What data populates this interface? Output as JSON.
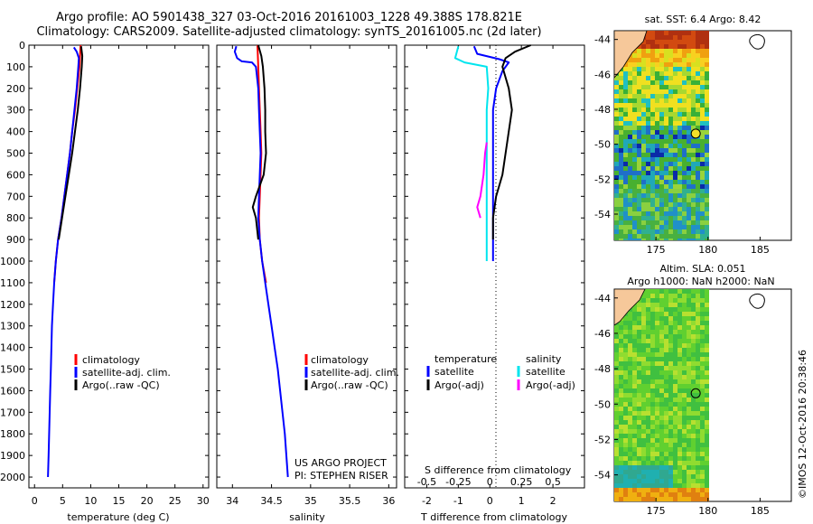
{
  "title": {
    "line1": "Argo profile: AO 5901438_327 03-Oct-2016 20161003_1228 49.388S 178.821E",
    "line2": "Climatology: CARS2009. Satellite-adjusted climatology: synTS_20161005.nc (2d later)"
  },
  "colors": {
    "climatology": "#ff0000",
    "satellite": "#0000ff",
    "argo": "#000000",
    "s_satellite": "#00e5ee",
    "s_argo": "#ff00ff"
  },
  "credit": {
    "project": "US ARGO PROJECT",
    "pi": "PI: STEPHEN RISER",
    "stamp": "©IMOS 12-Oct-2016 20:38:46"
  },
  "legend": {
    "climatology": "climatology",
    "satellite": "satellite-adj. clim.",
    "argo": "Argo(..raw -QC)"
  },
  "diff_legend": {
    "temperature": "temperature",
    "salinity": "salinity",
    "t_satellite": "satellite",
    "t_argo": "Argo(-adj)",
    "s_satellite": "satellite",
    "s_argo": "Argo(-adj)"
  },
  "map_labels": {
    "sst": "sat. SST: 6.4 Argo: 8.42",
    "sla": "Altim. SLA: 0.051",
    "depth": "Argo h1000: NaN h2000: NaN"
  },
  "chart_data": [
    {
      "type": "line",
      "panel": "temperature",
      "xlabel": "temperature (deg C)",
      "ylim": [
        2050,
        0
      ],
      "xlim": [
        -1,
        31
      ],
      "xticks": [
        0,
        5,
        10,
        15,
        20,
        25,
        30
      ],
      "yticks": [
        0,
        100,
        200,
        300,
        400,
        500,
        600,
        700,
        800,
        900,
        1000,
        1100,
        1200,
        1300,
        1400,
        1500,
        1600,
        1700,
        1800,
        1900,
        2000
      ],
      "series": [
        {
          "name": "climatology",
          "color": "#ff0000",
          "points": [
            [
              8.2,
              0
            ],
            [
              8.0,
              100
            ],
            [
              7.6,
              200
            ],
            [
              7.2,
              300
            ],
            [
              6.7,
              400
            ],
            [
              6.3,
              500
            ],
            [
              5.8,
              600
            ],
            [
              5.3,
              700
            ],
            [
              4.8,
              800
            ],
            [
              4.2,
              900
            ],
            [
              3.8,
              1000
            ],
            [
              3.5,
              1100
            ]
          ]
        },
        {
          "name": "satellite-adj. clim.",
          "color": "#0000ff",
          "points": [
            [
              7.0,
              10
            ],
            [
              7.5,
              30
            ],
            [
              7.9,
              60
            ],
            [
              7.8,
              100
            ],
            [
              7.5,
              200
            ],
            [
              7.1,
              300
            ],
            [
              6.7,
              400
            ],
            [
              6.3,
              500
            ],
            [
              5.8,
              600
            ],
            [
              5.3,
              700
            ],
            [
              4.8,
              800
            ],
            [
              4.2,
              900
            ],
            [
              3.8,
              1000
            ],
            [
              3.5,
              1100
            ],
            [
              3.3,
              1200
            ],
            [
              3.1,
              1300
            ],
            [
              3.0,
              1400
            ],
            [
              2.9,
              1500
            ],
            [
              2.8,
              1600
            ],
            [
              2.7,
              1700
            ],
            [
              2.6,
              1800
            ],
            [
              2.5,
              1900
            ],
            [
              2.4,
              2000
            ]
          ]
        },
        {
          "name": "Argo(..raw -QC)",
          "color": "#000000",
          "points": [
            [
              8.3,
              5
            ],
            [
              8.5,
              50
            ],
            [
              8.4,
              100
            ],
            [
              8.1,
              200
            ],
            [
              7.7,
              300
            ],
            [
              7.2,
              400
            ],
            [
              6.7,
              500
            ],
            [
              6.1,
              600
            ],
            [
              5.5,
              700
            ],
            [
              4.9,
              800
            ],
            [
              4.3,
              900
            ]
          ]
        }
      ]
    },
    {
      "type": "line",
      "panel": "salinity",
      "xlabel": "salinity",
      "ylim": [
        2050,
        0
      ],
      "xlim": [
        33.8,
        36.1
      ],
      "xticks": [
        34,
        34.5,
        35,
        35.5,
        36
      ],
      "xticklabels": [
        "34",
        "34.5",
        "35",
        "35.5",
        "36"
      ],
      "series": [
        {
          "name": "climatology",
          "color": "#ff0000",
          "points": [
            [
              34.32,
              0
            ],
            [
              34.33,
              100
            ],
            [
              34.34,
              200
            ],
            [
              34.35,
              300
            ],
            [
              34.36,
              400
            ],
            [
              34.37,
              500
            ],
            [
              34.36,
              600
            ],
            [
              34.35,
              700
            ],
            [
              34.34,
              800
            ],
            [
              34.35,
              900
            ],
            [
              34.38,
              1000
            ],
            [
              34.43,
              1100
            ]
          ]
        },
        {
          "name": "satellite-adj. clim.",
          "color": "#0000ff",
          "points": [
            [
              34.05,
              5
            ],
            [
              34.03,
              30
            ],
            [
              34.06,
              60
            ],
            [
              34.12,
              75
            ],
            [
              34.25,
              80
            ],
            [
              34.3,
              100
            ],
            [
              34.33,
              200
            ],
            [
              34.34,
              300
            ],
            [
              34.35,
              400
            ],
            [
              34.36,
              500
            ],
            [
              34.35,
              600
            ],
            [
              34.34,
              700
            ],
            [
              34.33,
              800
            ],
            [
              34.35,
              900
            ],
            [
              34.38,
              1000
            ],
            [
              34.42,
              1100
            ],
            [
              34.46,
              1200
            ],
            [
              34.5,
              1300
            ],
            [
              34.54,
              1400
            ],
            [
              34.58,
              1500
            ],
            [
              34.61,
              1600
            ],
            [
              34.64,
              1700
            ],
            [
              34.67,
              1800
            ],
            [
              34.69,
              1900
            ],
            [
              34.71,
              2000
            ]
          ]
        },
        {
          "name": "Argo(..raw -QC)",
          "color": "#000000",
          "points": [
            [
              34.33,
              0
            ],
            [
              34.37,
              50
            ],
            [
              34.39,
              100
            ],
            [
              34.41,
              200
            ],
            [
              34.42,
              300
            ],
            [
              34.42,
              400
            ],
            [
              34.43,
              500
            ],
            [
              34.4,
              600
            ],
            [
              34.3,
              700
            ],
            [
              34.26,
              750
            ],
            [
              34.3,
              800
            ],
            [
              34.33,
              900
            ]
          ]
        }
      ]
    },
    {
      "type": "line",
      "panel": "difference",
      "xlabel": "T difference from climatology",
      "xlabel2": "S difference from climatology",
      "ylim": [
        2050,
        0
      ],
      "xlim": [
        -2.7,
        3.0
      ],
      "xticks": [
        -2,
        -1,
        0,
        1,
        2
      ],
      "s_xticks": [
        -0.5,
        -0.25,
        0,
        0.25,
        0.5
      ],
      "s_xticklabels": [
        "-0.5",
        "-0.25",
        "0",
        "0.25",
        "0.5"
      ],
      "series": [
        {
          "name": "satellite",
          "quantity": "temperature",
          "color": "#0000ff",
          "points": [
            [
              -0.5,
              5
            ],
            [
              -0.4,
              40
            ],
            [
              0.3,
              65
            ],
            [
              0.6,
              80
            ],
            [
              0.4,
              120
            ],
            [
              0.2,
              200
            ],
            [
              0.1,
              300
            ],
            [
              0.1,
              400
            ],
            [
              0.1,
              500
            ],
            [
              0.1,
              600
            ],
            [
              0.1,
              700
            ],
            [
              0.1,
              800
            ],
            [
              0.1,
              900
            ],
            [
              0.1,
              1000
            ]
          ]
        },
        {
          "name": "Argo(-adj)",
          "quantity": "temperature",
          "color": "#000000",
          "points": [
            [
              1.3,
              0
            ],
            [
              0.8,
              30
            ],
            [
              0.5,
              60
            ],
            [
              0.4,
              100
            ],
            [
              0.6,
              200
            ],
            [
              0.7,
              300
            ],
            [
              0.6,
              400
            ],
            [
              0.5,
              500
            ],
            [
              0.4,
              600
            ],
            [
              0.2,
              700
            ],
            [
              0.1,
              800
            ],
            [
              0.1,
              900
            ]
          ]
        },
        {
          "name": "satellite",
          "quantity": "salinity",
          "color": "#00e5ee",
          "points": [
            [
              -1.0,
              5
            ],
            [
              -1.1,
              60
            ],
            [
              -0.8,
              80
            ],
            [
              -0.1,
              100
            ],
            [
              -0.05,
              200
            ],
            [
              -0.1,
              300
            ],
            [
              -0.1,
              400
            ],
            [
              -0.1,
              500
            ],
            [
              -0.1,
              600
            ],
            [
              -0.1,
              700
            ],
            [
              -0.1,
              800
            ],
            [
              -0.1,
              900
            ],
            [
              -0.1,
              1000
            ]
          ]
        },
        {
          "name": "Argo(-adj)",
          "quantity": "salinity",
          "color": "#ff00ff",
          "points": [
            [
              -0.1,
              450
            ],
            [
              -0.15,
              500
            ],
            [
              -0.2,
              600
            ],
            [
              -0.3,
              700
            ],
            [
              -0.4,
              750
            ],
            [
              -0.3,
              800
            ]
          ]
        }
      ]
    }
  ],
  "maps": [
    {
      "name": "sst-map",
      "lon_ticks": [
        175,
        180,
        185
      ],
      "lat_ticks": [
        -44,
        -46,
        -48,
        -50,
        -52,
        -54
      ],
      "float_position": [
        178.821,
        -49.388
      ]
    },
    {
      "name": "sla-map",
      "lon_ticks": [
        175,
        180,
        185
      ],
      "lat_ticks": [
        -44,
        -46,
        -48,
        -50,
        -52,
        -54
      ],
      "float_position": [
        178.821,
        -49.388
      ]
    }
  ]
}
